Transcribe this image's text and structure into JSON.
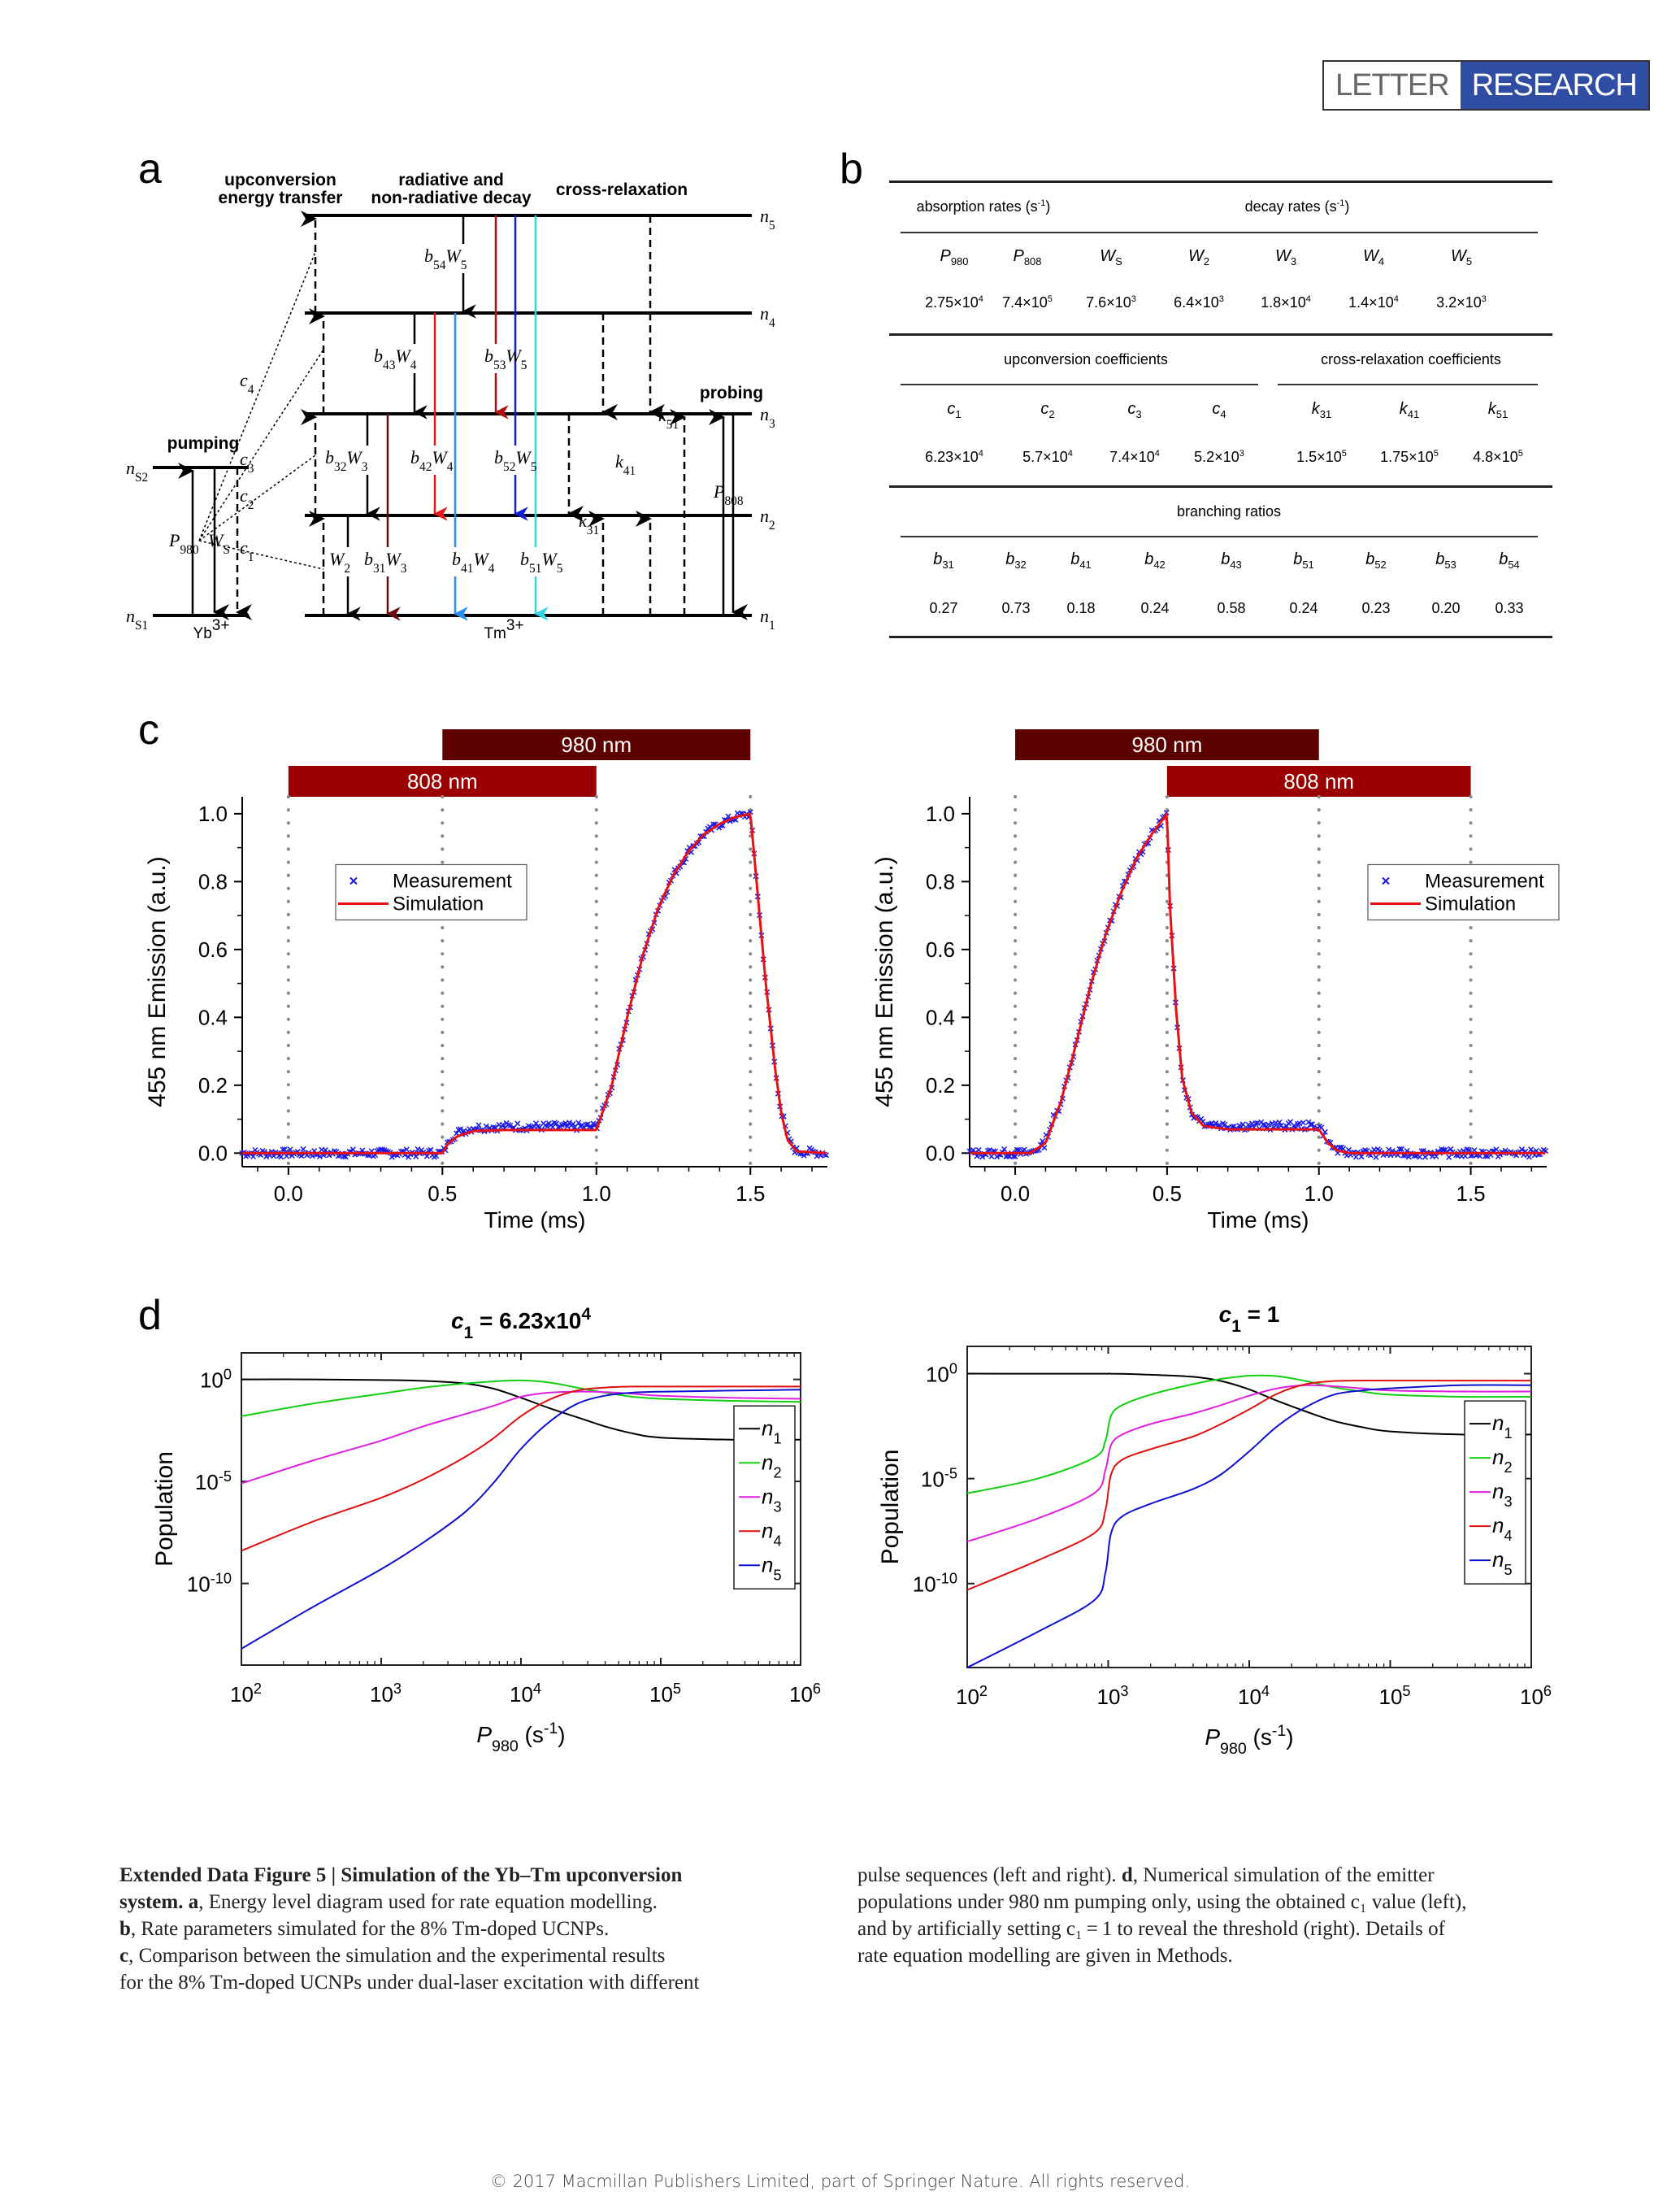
{
  "header": {
    "badge_left": "LETTER",
    "badge_right": "RESEARCH",
    "badge_color": "#2f4ea3"
  },
  "panels": {
    "a": "a",
    "b": "b",
    "c": "c",
    "d": "d"
  },
  "panel_a": {
    "headings": {
      "upconversion_1": "upconversion",
      "upconversion_2": "energy transfer",
      "decay_1": "radiative and",
      "decay_2": "non-radiative decay",
      "cross": "cross-relaxation",
      "pumping": "pumping",
      "probing": "probing"
    },
    "levels_tm": [
      "n5",
      "n4",
      "n3",
      "n2",
      "n1"
    ],
    "levels_yb": [
      "nS2",
      "nS1"
    ],
    "ion_labels": {
      "yb": "Yb3+",
      "tm": "Tm3+"
    },
    "transitions": [
      {
        "label": "b54W5",
        "color": "#000000"
      },
      {
        "label": "b53W5",
        "color": "#b01010"
      },
      {
        "label": "b52W5",
        "color": "#1020d0"
      },
      {
        "label": "b51W5",
        "color": "#2cd6e6"
      },
      {
        "label": "b43W4",
        "color": "#000000"
      },
      {
        "label": "b42W4",
        "color": "#e01a1a"
      },
      {
        "label": "b41W4",
        "color": "#2a8ef0"
      },
      {
        "label": "b32W3",
        "color": "#000000"
      },
      {
        "label": "b31W3",
        "color": "#6a0c0c"
      },
      {
        "label": "W2",
        "color": "#000000"
      }
    ],
    "coefficients": [
      "c1",
      "c2",
      "c3",
      "c4",
      "k31",
      "k41",
      "k51"
    ],
    "pump_labels": {
      "p980": "P980",
      "ws": "WS",
      "p808": "P808"
    }
  },
  "panel_b": {
    "section1": {
      "left_title": "absorption rates (s-1)",
      "right_title": "decay rates (s-1)",
      "headers": [
        [
          "P",
          "980"
        ],
        [
          "P",
          "808"
        ],
        [
          "W",
          "S"
        ],
        [
          "W",
          "2"
        ],
        [
          "W",
          "3"
        ],
        [
          "W",
          "4"
        ],
        [
          "W",
          "5"
        ]
      ],
      "values": [
        [
          "2.75",
          "4"
        ],
        [
          "7.4",
          "5"
        ],
        [
          "7.6",
          "3"
        ],
        [
          "6.4",
          "3"
        ],
        [
          "1.8",
          "4"
        ],
        [
          "1.4",
          "4"
        ],
        [
          "3.2",
          "3"
        ]
      ]
    },
    "section2": {
      "left_title": "upconversion coefficients",
      "right_title": "cross-relaxation coefficients",
      "headers": [
        [
          "c",
          "1"
        ],
        [
          "c",
          "2"
        ],
        [
          "c",
          "3"
        ],
        [
          "c",
          "4"
        ],
        [
          "k",
          "31"
        ],
        [
          "k",
          "41"
        ],
        [
          "k",
          "51"
        ]
      ],
      "values": [
        [
          "6.23",
          "4"
        ],
        [
          "5.7",
          "4"
        ],
        [
          "7.4",
          "4"
        ],
        [
          "5.2",
          "3"
        ],
        [
          "1.5",
          "5"
        ],
        [
          "1.75",
          "5"
        ],
        [
          "4.8",
          "5"
        ]
      ]
    },
    "section3": {
      "title": "branching ratios",
      "headers": [
        [
          "b",
          "31"
        ],
        [
          "b",
          "32"
        ],
        [
          "b",
          "41"
        ],
        [
          "b",
          "42"
        ],
        [
          "b",
          "43"
        ],
        [
          "b",
          "51"
        ],
        [
          "b",
          "52"
        ],
        [
          "b",
          "53"
        ],
        [
          "b",
          "54"
        ]
      ],
      "values": [
        "0.27",
        "0.73",
        "0.18",
        "0.24",
        "0.58",
        "0.24",
        "0.23",
        "0.20",
        "0.33"
      ]
    }
  },
  "chart_data": [
    {
      "id": "c-left",
      "type": "scatter+line",
      "xlabel": "Time (ms)",
      "ylabel": "455 nm Emission (a.u.)",
      "xlim": [
        -0.15,
        1.75
      ],
      "ylim": [
        -0.04,
        1.05
      ],
      "xticks": [
        "0.0",
        "0.5",
        "1.0",
        "1.5"
      ],
      "yticks": [
        "0.0",
        "0.2",
        "0.4",
        "0.6",
        "0.8",
        "1.0"
      ],
      "pulses": [
        {
          "label": "808 nm",
          "start": 0.0,
          "end": 1.0,
          "color": "#9b0000"
        },
        {
          "label": "980 nm",
          "start": 0.5,
          "end": 1.5,
          "color": "#5c0000"
        }
      ],
      "vlines": [
        0.0,
        0.5,
        1.0,
        1.5
      ],
      "legend": {
        "position": "upper-left",
        "items": [
          {
            "label": "Measurement",
            "marker": "x",
            "color": "#1a1ae6"
          },
          {
            "label": "Simulation",
            "color": "#e81010"
          }
        ]
      },
      "simulation": {
        "x": [
          -0.15,
          0.5,
          0.52,
          0.55,
          0.6,
          0.7,
          1.0,
          1.05,
          1.1,
          1.15,
          1.2,
          1.25,
          1.3,
          1.35,
          1.4,
          1.45,
          1.5,
          1.52,
          1.55,
          1.58,
          1.6,
          1.62,
          1.65,
          1.75
        ],
        "y": [
          0.0,
          0.0,
          0.03,
          0.05,
          0.065,
          0.068,
          0.068,
          0.2,
          0.4,
          0.58,
          0.72,
          0.82,
          0.89,
          0.94,
          0.97,
          0.99,
          1.0,
          0.8,
          0.5,
          0.25,
          0.12,
          0.04,
          0.005,
          0.0
        ]
      },
      "measurement_noise": 0.012
    },
    {
      "id": "c-right",
      "type": "scatter+line",
      "xlabel": "Time (ms)",
      "ylabel": "455 nm Emission (a.u.)",
      "xlim": [
        -0.15,
        1.75
      ],
      "ylim": [
        -0.04,
        1.05
      ],
      "xticks": [
        "0.0",
        "0.5",
        "1.0",
        "1.5"
      ],
      "yticks": [
        "0.0",
        "0.2",
        "0.4",
        "0.6",
        "0.8",
        "1.0"
      ],
      "pulses": [
        {
          "label": "980 nm",
          "start": 0.0,
          "end": 1.0,
          "color": "#5c0000"
        },
        {
          "label": "808 nm",
          "start": 0.5,
          "end": 1.5,
          "color": "#9b0000"
        }
      ],
      "vlines": [
        0.0,
        0.5,
        1.0,
        1.5
      ],
      "legend": {
        "position": "upper-right",
        "items": [
          {
            "label": "Measurement",
            "marker": "x",
            "color": "#1a1ae6"
          },
          {
            "label": "Simulation",
            "color": "#e81010"
          }
        ]
      },
      "simulation": {
        "x": [
          -0.15,
          0.05,
          0.1,
          0.15,
          0.2,
          0.25,
          0.3,
          0.35,
          0.4,
          0.45,
          0.5,
          0.51,
          0.53,
          0.55,
          0.58,
          0.62,
          0.7,
          1.0,
          1.03,
          1.06,
          1.1,
          1.75
        ],
        "y": [
          0.0,
          0.0,
          0.03,
          0.15,
          0.32,
          0.5,
          0.65,
          0.77,
          0.87,
          0.94,
          1.0,
          0.72,
          0.42,
          0.22,
          0.12,
          0.08,
          0.07,
          0.07,
          0.03,
          0.008,
          0.0,
          0.0
        ]
      },
      "measurement_noise": 0.012
    },
    {
      "id": "d-left",
      "type": "line",
      "title": "c1 = 6.23x10^4",
      "title_parts": {
        "var": "c",
        "sub": "1",
        "rest": " = 6.23x10",
        "sup": "4"
      },
      "xlabel": "P980 (s-1)",
      "ylabel": "Population",
      "xscale": "log",
      "yscale": "log",
      "xlim_log10": [
        2,
        6
      ],
      "ylim_log10": [
        -14,
        1.3
      ],
      "xticks": [
        {
          "base": "10",
          "exp": "2"
        },
        {
          "base": "10",
          "exp": "3"
        },
        {
          "base": "10",
          "exp": "4"
        },
        {
          "base": "10",
          "exp": "5"
        },
        {
          "base": "10",
          "exp": "6"
        }
      ],
      "yticks": [
        {
          "base": "10",
          "exp": "0",
          "v": 0
        },
        {
          "base": "10",
          "exp": "-5",
          "v": -5
        },
        {
          "base": "10",
          "exp": "-10",
          "v": -10
        }
      ],
      "legend": {
        "position": "right",
        "items": [
          "n1",
          "n2",
          "n3",
          "n4",
          "n5"
        ]
      },
      "x_log10": [
        2,
        2.5,
        3,
        3.3,
        3.6,
        3.8,
        4,
        4.2,
        4.4,
        4.6,
        4.8,
        5,
        5.5,
        6
      ],
      "series": [
        {
          "name": "n1",
          "color": "#000000",
          "y_log10": [
            0,
            0,
            -0.03,
            -0.07,
            -0.2,
            -0.45,
            -0.9,
            -1.4,
            -1.85,
            -2.3,
            -2.65,
            -2.85,
            -2.95,
            -2.95
          ]
        },
        {
          "name": "n2",
          "color": "#10d010",
          "y_log10": [
            -1.8,
            -1.2,
            -0.7,
            -0.4,
            -0.2,
            -0.1,
            -0.05,
            -0.15,
            -0.4,
            -0.65,
            -0.85,
            -0.95,
            -1.05,
            -1.1
          ]
        },
        {
          "name": "n3",
          "color": "#e020e0",
          "y_log10": [
            -5.1,
            -4.0,
            -3.0,
            -2.3,
            -1.7,
            -1.3,
            -0.85,
            -0.65,
            -0.6,
            -0.62,
            -0.7,
            -0.8,
            -0.9,
            -0.95
          ]
        },
        {
          "name": "n4",
          "color": "#e01010",
          "y_log10": [
            -8.4,
            -7.0,
            -5.8,
            -4.9,
            -3.8,
            -2.9,
            -1.8,
            -1.0,
            -0.55,
            -0.4,
            -0.35,
            -0.35,
            -0.35,
            -0.35
          ]
        },
        {
          "name": "n5",
          "color": "#1010d0",
          "y_log10": [
            -13.2,
            -11.2,
            -9.3,
            -8.0,
            -6.5,
            -5.1,
            -3.4,
            -2.1,
            -1.2,
            -0.8,
            -0.65,
            -0.6,
            -0.55,
            -0.5
          ]
        }
      ]
    },
    {
      "id": "d-right",
      "type": "line",
      "title": "c1 = 1",
      "title_parts": {
        "var": "c",
        "sub": "1",
        "rest": " = 1",
        "sup": ""
      },
      "xlabel": "P980 (s-1)",
      "ylabel": "Population",
      "xscale": "log",
      "yscale": "log",
      "xlim_log10": [
        2,
        6
      ],
      "ylim_log10": [
        -14,
        1.3
      ],
      "xticks": [
        {
          "base": "10",
          "exp": "2"
        },
        {
          "base": "10",
          "exp": "3"
        },
        {
          "base": "10",
          "exp": "4"
        },
        {
          "base": "10",
          "exp": "5"
        },
        {
          "base": "10",
          "exp": "6"
        }
      ],
      "yticks": [
        {
          "base": "10",
          "exp": "0",
          "v": 0
        },
        {
          "base": "10",
          "exp": "-5",
          "v": -5
        },
        {
          "base": "10",
          "exp": "-10",
          "v": -10
        }
      ],
      "legend": {
        "position": "right",
        "items": [
          "n1",
          "n2",
          "n3",
          "n4",
          "n5"
        ]
      },
      "x_log10": [
        2,
        2.5,
        2.9,
        2.98,
        3.02,
        3.1,
        3.3,
        3.6,
        3.8,
        4,
        4.2,
        4.4,
        4.6,
        4.8,
        5,
        5.5,
        6
      ],
      "series": [
        {
          "name": "n1",
          "color": "#000000",
          "y_log10": [
            0,
            0,
            0,
            0,
            0,
            -0.01,
            -0.05,
            -0.15,
            -0.35,
            -0.75,
            -1.3,
            -1.8,
            -2.25,
            -2.55,
            -2.75,
            -2.9,
            -2.9
          ]
        },
        {
          "name": "n2",
          "color": "#10d010",
          "y_log10": [
            -5.7,
            -5.0,
            -4.0,
            -3.2,
            -2.0,
            -1.5,
            -1.0,
            -0.5,
            -0.25,
            -0.1,
            -0.12,
            -0.35,
            -0.65,
            -0.85,
            -1.0,
            -1.1,
            -1.1
          ]
        },
        {
          "name": "n3",
          "color": "#e020e0",
          "y_log10": [
            -8.0,
            -6.9,
            -5.7,
            -4.6,
            -3.4,
            -2.9,
            -2.4,
            -1.9,
            -1.5,
            -1.05,
            -0.7,
            -0.55,
            -0.6,
            -0.7,
            -0.8,
            -0.85,
            -0.85
          ]
        },
        {
          "name": "n4",
          "color": "#e01010",
          "y_log10": [
            -10.3,
            -8.9,
            -7.6,
            -6.5,
            -4.8,
            -4.1,
            -3.6,
            -3.0,
            -2.4,
            -1.7,
            -0.95,
            -0.5,
            -0.35,
            -0.33,
            -0.33,
            -0.33,
            -0.33
          ]
        },
        {
          "name": "n5",
          "color": "#1010d0",
          "y_log10": [
            -14.0,
            -12.3,
            -10.8,
            -9.5,
            -7.6,
            -6.8,
            -6.2,
            -5.5,
            -4.8,
            -3.7,
            -2.5,
            -1.6,
            -1.0,
            -0.8,
            -0.7,
            -0.55,
            -0.55
          ]
        }
      ]
    }
  ],
  "caption": {
    "left": [
      {
        "bold": "Extended Data Figure 5 | Simulation of the Yb–Tm upconversion",
        "text": ""
      },
      {
        "bold": "system. a",
        "text": ", Energy level diagram used for rate equation modelling."
      },
      {
        "bold": "b",
        "text": ", Rate parameters simulated for the 8% Tm-doped UCNPs."
      },
      {
        "bold": "c",
        "text": ", Comparison between the simulation and the experimental results"
      },
      {
        "bold": "",
        "text": "for the 8% Tm-doped UCNPs under dual-laser excitation with different"
      }
    ],
    "right": [
      {
        "bold": "",
        "text": "pulse sequences (left and right). ",
        "bold2": "d",
        "text2": ", Numerical simulation of the emitter"
      },
      {
        "bold": "",
        "text": "populations under 980 nm pumping only, using the obtained c₁ value (left),"
      },
      {
        "bold": "",
        "text": "and by artificially setting c₁ = 1 to reveal the threshold (right). Details of"
      },
      {
        "bold": "",
        "text": "rate equation modelling are given in Methods."
      }
    ]
  },
  "footer": "© 2017 Macmillan Publishers Limited, part of Springer Nature. All rights reserved."
}
